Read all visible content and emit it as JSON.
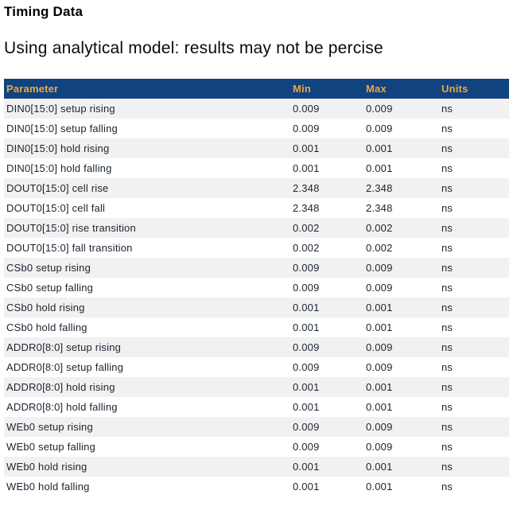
{
  "page": {
    "title": "Timing Data",
    "subtitle": "Using analytical model: results may not be percise"
  },
  "table": {
    "columns": [
      "Parameter",
      "Min",
      "Max",
      "Units"
    ],
    "rows": [
      {
        "parameter": "DIN0[15:0] setup rising",
        "min": "0.009",
        "max": "0.009",
        "units": "ns"
      },
      {
        "parameter": "DIN0[15:0] setup falling",
        "min": "0.009",
        "max": "0.009",
        "units": "ns"
      },
      {
        "parameter": "DIN0[15:0] hold rising",
        "min": "0.001",
        "max": "0.001",
        "units": "ns"
      },
      {
        "parameter": "DIN0[15:0] hold falling",
        "min": "0.001",
        "max": "0.001",
        "units": "ns"
      },
      {
        "parameter": "DOUT0[15:0] cell rise",
        "min": "2.348",
        "max": "2.348",
        "units": "ns"
      },
      {
        "parameter": "DOUT0[15:0] cell fall",
        "min": "2.348",
        "max": "2.348",
        "units": "ns"
      },
      {
        "parameter": "DOUT0[15:0] rise transition",
        "min": "0.002",
        "max": "0.002",
        "units": "ns"
      },
      {
        "parameter": "DOUT0[15:0] fall transition",
        "min": "0.002",
        "max": "0.002",
        "units": "ns"
      },
      {
        "parameter": "CSb0 setup rising",
        "min": "0.009",
        "max": "0.009",
        "units": "ns"
      },
      {
        "parameter": "CSb0 setup falling",
        "min": "0.009",
        "max": "0.009",
        "units": "ns"
      },
      {
        "parameter": "CSb0 hold rising",
        "min": "0.001",
        "max": "0.001",
        "units": "ns"
      },
      {
        "parameter": "CSb0 hold falling",
        "min": "0.001",
        "max": "0.001",
        "units": "ns"
      },
      {
        "parameter": "ADDR0[8:0] setup rising",
        "min": "0.009",
        "max": "0.009",
        "units": "ns"
      },
      {
        "parameter": "ADDR0[8:0] setup falling",
        "min": "0.009",
        "max": "0.009",
        "units": "ns"
      },
      {
        "parameter": "ADDR0[8:0] hold rising",
        "min": "0.001",
        "max": "0.001",
        "units": "ns"
      },
      {
        "parameter": "ADDR0[8:0] hold falling",
        "min": "0.001",
        "max": "0.001",
        "units": "ns"
      },
      {
        "parameter": "WEb0 setup rising",
        "min": "0.009",
        "max": "0.009",
        "units": "ns"
      },
      {
        "parameter": "WEb0 setup falling",
        "min": "0.009",
        "max": "0.009",
        "units": "ns"
      },
      {
        "parameter": "WEb0 hold rising",
        "min": "0.001",
        "max": "0.001",
        "units": "ns"
      },
      {
        "parameter": "WEb0 hold falling",
        "min": "0.001",
        "max": "0.001",
        "units": "ns"
      }
    ]
  },
  "colors": {
    "header_bg": "#114380",
    "header_text": "#f0a63c",
    "row_alt_bg": "#f1f1f1",
    "row_text": "#1a2430",
    "title_text": "#000000"
  }
}
